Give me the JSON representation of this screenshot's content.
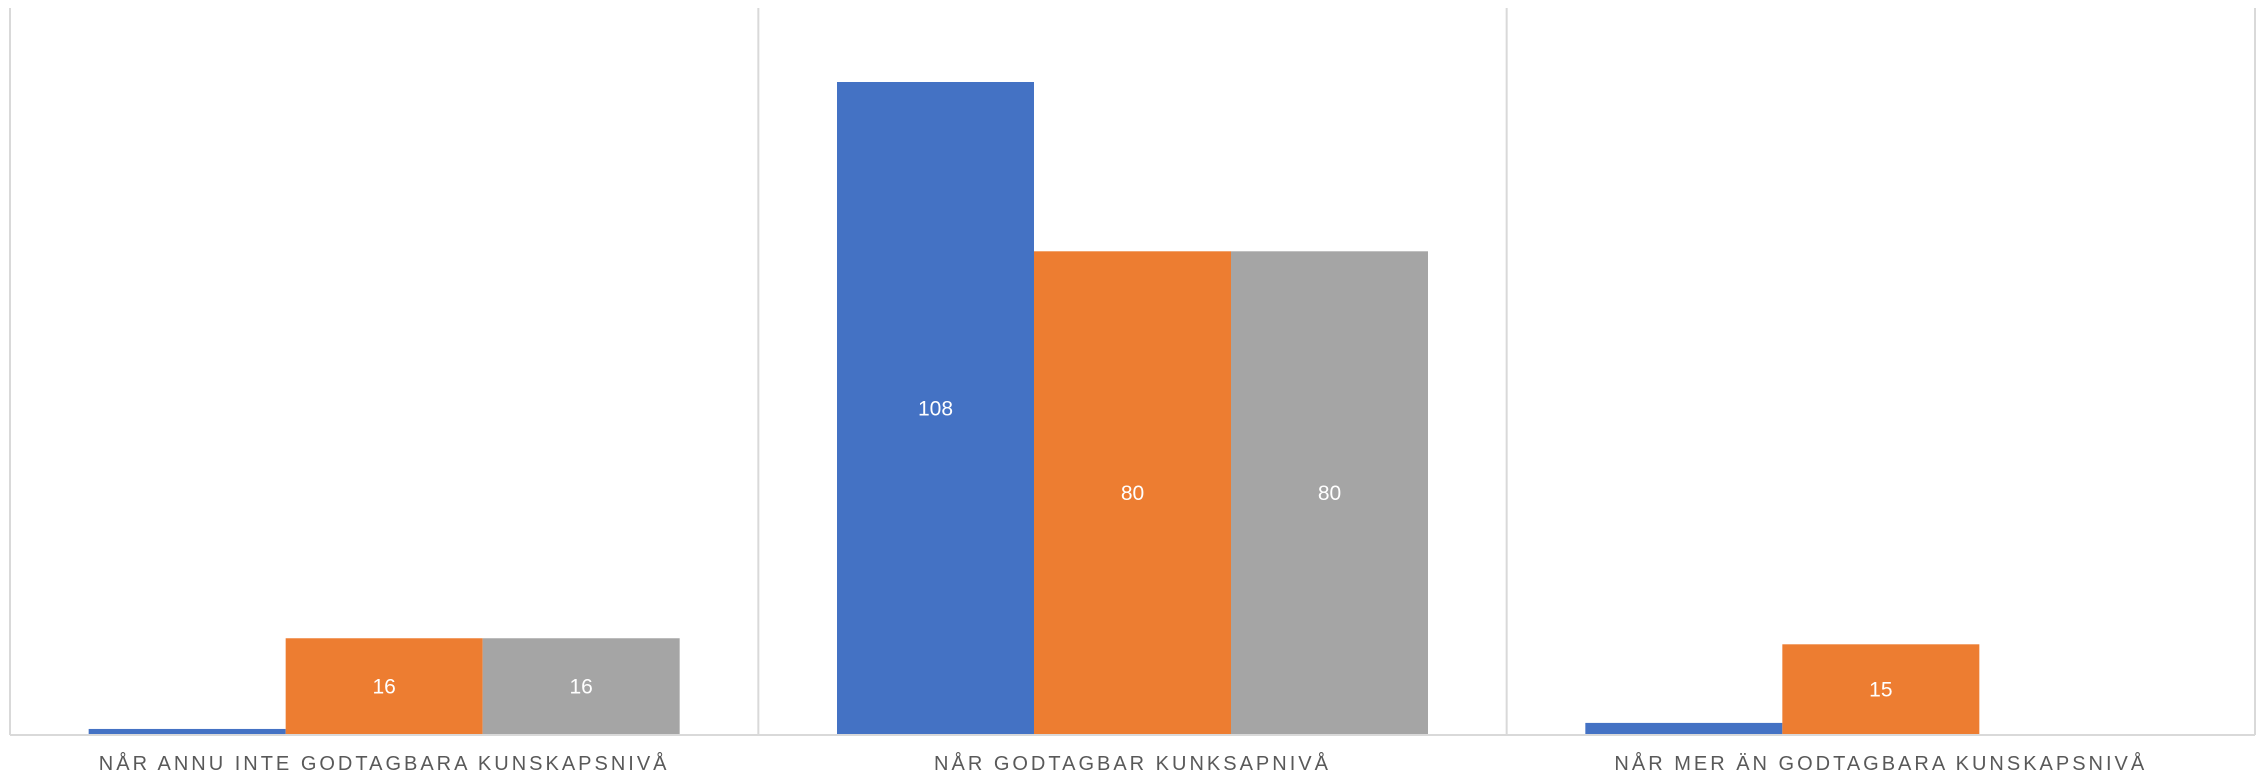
{
  "chart_data": {
    "type": "bar",
    "title": "",
    "xlabel": "",
    "ylabel": "",
    "categories": [
      "NÅR ANNU INTE GODTAGBARA KUNSKAPSNIVÅ",
      "NÅR GODTAGBAR KUNKSAPNIVÅ",
      "NÅR MER ÄN GODTAGBARA KUNSKAPSNIVÅ"
    ],
    "series": [
      {
        "values": [
          1,
          108,
          2
        ],
        "color": "#4472C4",
        "labels": [
          "",
          "108",
          ""
        ]
      },
      {
        "values": [
          16,
          80,
          15
        ],
        "color": "#ED7D31",
        "labels": [
          "16",
          "80",
          "15"
        ]
      },
      {
        "values": [
          16,
          80,
          0
        ],
        "color": "#A5A5A5",
        "labels": [
          "16",
          "80",
          ""
        ]
      }
    ],
    "ylim": [
      0,
      120
    ],
    "grid": false,
    "legend": "none",
    "category_separators": true
  }
}
